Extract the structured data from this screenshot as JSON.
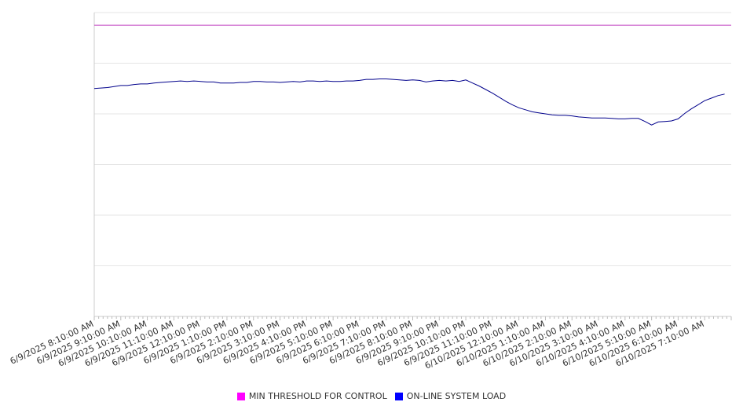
{
  "chart_data": {
    "type": "line",
    "title": "",
    "xlabel": "",
    "ylabel": "",
    "ylim": [
      0,
      6
    ],
    "grid": true,
    "legend_position": "bottom",
    "x_tick_labels": [
      "6/9/2025 8:10:00 AM",
      "6/9/2025 9:10:00 AM",
      "6/9/2025 10:10:00 AM",
      "6/9/2025 11:10:00 AM",
      "6/9/2025 12:10:00 PM",
      "6/9/2025 1:10:00 PM",
      "6/9/2025 2:10:00 PM",
      "6/9/2025 3:10:00 PM",
      "6/9/2025 4:10:00 PM",
      "6/9/2025 5:10:00 PM",
      "6/9/2025 6:10:00 PM",
      "6/9/2025 7:10:00 PM",
      "6/9/2025 8:10:00 PM",
      "6/9/2025 9:10:00 PM",
      "6/9/2025 10:10:00 PM",
      "6/9/2025 11:10:00 PM",
      "6/10/2025 12:10:00 AM",
      "6/10/2025 1:10:00 AM",
      "6/10/2025 2:10:00 AM",
      "6/10/2025 3:10:00 AM",
      "6/10/2025 4:10:00 AM",
      "6/10/2025 5:10:00 AM",
      "6/10/2025 6:10:00 AM",
      "6/10/2025 7:10:00 AM"
    ],
    "x_hours": [
      0,
      0.25,
      0.5,
      0.75,
      1,
      1.25,
      1.5,
      1.75,
      2,
      2.25,
      2.5,
      2.75,
      3,
      3.25,
      3.5,
      3.75,
      4,
      4.25,
      4.5,
      4.75,
      5,
      5.25,
      5.5,
      5.75,
      6,
      6.25,
      6.5,
      6.75,
      7,
      7.25,
      7.5,
      7.75,
      8,
      8.25,
      8.5,
      8.75,
      9,
      9.25,
      9.5,
      9.75,
      10,
      10.25,
      10.5,
      10.75,
      11,
      11.25,
      11.5,
      11.75,
      12,
      12.25,
      12.5,
      12.75,
      13,
      13.25,
      13.5,
      13.75,
      14,
      14.25,
      14.5,
      14.75,
      15,
      15.25,
      15.5,
      15.75,
      16,
      16.25,
      16.5,
      16.75,
      17,
      17.25,
      17.5,
      17.75,
      18,
      18.25,
      18.5,
      18.75,
      19,
      19.25,
      19.5,
      19.75,
      20,
      20.25,
      20.5,
      20.75,
      21,
      21.25,
      21.5,
      21.75,
      22,
      22.25,
      22.5,
      22.75,
      23,
      23.25,
      23.5,
      23.75
    ],
    "series": [
      {
        "name": "MIN THRESHOLD FOR CONTROL",
        "color": "#c040c0",
        "legend_color": "#ff00ff",
        "values": [
          5.75,
          5.75,
          5.75,
          5.75,
          5.75,
          5.75,
          5.75,
          5.75,
          5.75,
          5.75,
          5.75,
          5.75,
          5.75,
          5.75,
          5.75,
          5.75,
          5.75,
          5.75,
          5.75,
          5.75,
          5.75,
          5.75,
          5.75,
          5.75,
          5.75,
          5.75,
          5.75,
          5.75,
          5.75,
          5.75,
          5.75,
          5.75,
          5.75,
          5.75,
          5.75,
          5.75,
          5.75,
          5.75,
          5.75,
          5.75,
          5.75,
          5.75,
          5.75,
          5.75,
          5.75,
          5.75,
          5.75,
          5.75,
          5.75,
          5.75,
          5.75,
          5.75,
          5.75,
          5.75,
          5.75,
          5.75,
          5.75,
          5.75,
          5.75,
          5.75,
          5.75,
          5.75,
          5.75,
          5.75,
          5.75,
          5.75,
          5.75,
          5.75,
          5.75,
          5.75,
          5.75,
          5.75,
          5.75,
          5.75,
          5.75,
          5.75,
          5.75,
          5.75,
          5.75,
          5.75,
          5.75,
          5.75,
          5.75,
          5.75,
          5.75,
          5.75,
          5.75,
          5.75,
          5.75,
          5.75,
          5.75,
          5.75,
          5.75,
          5.75,
          5.75,
          5.75
        ]
      },
      {
        "name": "ON-LINE SYSTEM LOAD",
        "color": "#00008b",
        "legend_color": "#0000ff",
        "values": [
          4.5,
          4.51,
          4.52,
          4.54,
          4.56,
          4.56,
          4.58,
          4.59,
          4.59,
          4.61,
          4.62,
          4.63,
          4.64,
          4.65,
          4.64,
          4.65,
          4.64,
          4.63,
          4.63,
          4.61,
          4.61,
          4.61,
          4.62,
          4.62,
          4.64,
          4.64,
          4.63,
          4.63,
          4.62,
          4.63,
          4.64,
          4.63,
          4.65,
          4.65,
          4.64,
          4.65,
          4.64,
          4.64,
          4.65,
          4.65,
          4.66,
          4.68,
          4.68,
          4.69,
          4.69,
          4.68,
          4.67,
          4.66,
          4.67,
          4.66,
          4.63,
          4.65,
          4.66,
          4.65,
          4.66,
          4.64,
          4.67,
          4.61,
          4.55,
          4.48,
          4.41,
          4.33,
          4.25,
          4.18,
          4.12,
          4.08,
          4.04,
          4.02,
          4,
          3.98,
          3.97,
          3.97,
          3.96,
          3.94,
          3.93,
          3.92,
          3.92,
          3.92,
          3.91,
          3.9,
          3.9,
          3.91,
          3.91,
          3.85,
          3.78,
          3.84,
          3.85,
          3.86,
          3.9,
          4.01,
          4.1,
          4.18,
          4.26,
          4.31,
          4.36,
          4.39
        ]
      }
    ]
  }
}
